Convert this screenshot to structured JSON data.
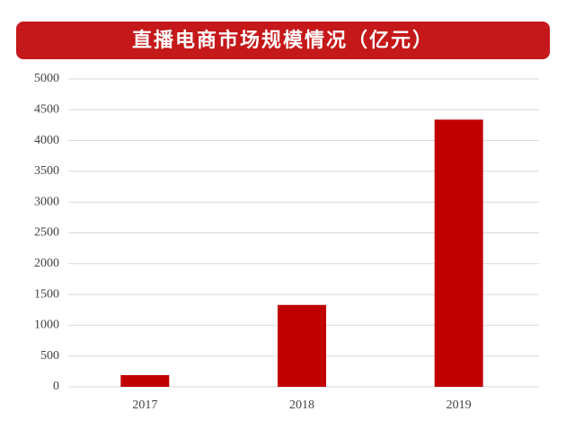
{
  "chart_data": {
    "type": "bar",
    "title": "直播电商市场规模情况（亿元）",
    "categories": [
      "2017",
      "2018",
      "2019"
    ],
    "values": [
      190,
      1330,
      4340
    ],
    "color": "#c00000",
    "ylim": [
      0,
      5000
    ],
    "yticks": [
      0,
      500,
      1000,
      1500,
      2000,
      2500,
      3000,
      3500,
      4000,
      4500,
      5000
    ],
    "grid": true
  }
}
